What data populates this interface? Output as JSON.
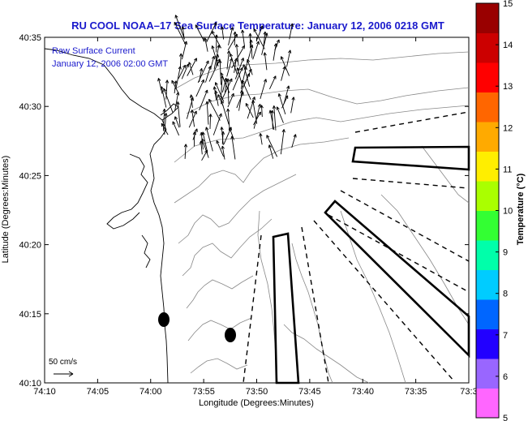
{
  "title": "RU COOL  NOAA–17  Sea Surface Temperature:  January 12, 2006 0218 GMT",
  "legend_text": {
    "line1": "Raw Surface Current",
    "line2": "January 12, 2006 02:00 GMT"
  },
  "scale_label": "50 cm/s",
  "axes": {
    "xlabel": "Longitude (Degrees:Minutes)",
    "ylabel": "Latitude (Degrees:Minutes)",
    "xticks": [
      "74:10",
      "74:05",
      "74:00",
      "73:55",
      "73:50",
      "73:45",
      "73:40",
      "73:35",
      "73:3"
    ],
    "yticks": [
      "40:35",
      "40:30",
      "40:25",
      "40:20",
      "40:15",
      "40:10"
    ]
  },
  "colorbar": {
    "label": "Temperature (°C)",
    "ticks": [
      "15",
      "14",
      "13",
      "12",
      "11",
      "10",
      "9",
      "8",
      "7",
      "6",
      "5"
    ],
    "colors": [
      "#ff66ff",
      "#9966ff",
      "#2200ff",
      "#0066ff",
      "#00ccff",
      "#00ffaa",
      "#33ff33",
      "#aaff00",
      "#ffee00",
      "#ffaa00",
      "#ff6600",
      "#ff0000",
      "#cc0000",
      "#990000"
    ]
  }
}
